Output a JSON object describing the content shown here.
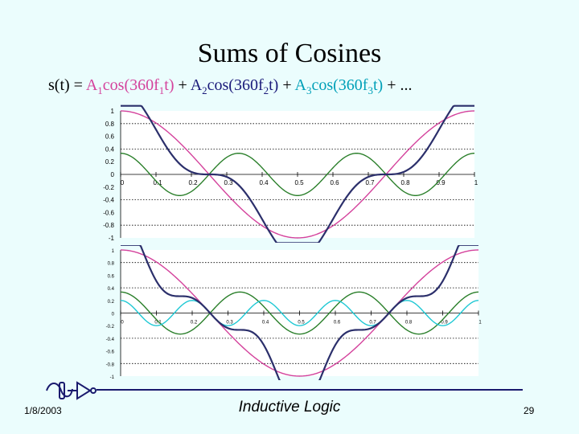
{
  "slide": {
    "title": "Sums of Cosines",
    "formula": {
      "lhs": "s(t) = ",
      "term1": {
        "A": "A",
        "a_sub": "1",
        "mid": "cos(360f",
        "f_sub": "1",
        "end": "t)"
      },
      "plus1": " + ",
      "term2": {
        "A": "A",
        "a_sub": "2",
        "mid": "cos(360f",
        "f_sub": "2",
        "end": "t)"
      },
      "plus2": " + ",
      "term3": {
        "A": "A",
        "a_sub": "3",
        "mid": "cos(360f",
        "f_sub": "3",
        "end": "t)"
      },
      "tail": " + ..."
    },
    "footer": {
      "date": "1/8/2003",
      "center": "Inductive Logic",
      "page": "29"
    },
    "colors": {
      "magenta": "#d4429c",
      "navy": "#2b2f6b",
      "green": "#2a7f2a",
      "cyan": "#1ec8d4",
      "accent_navy": "#1a1a7a",
      "accent_cyan": "#00a0b8"
    }
  },
  "chart_data": [
    {
      "type": "line",
      "x_range": [
        0,
        1
      ],
      "ylim": [
        -1,
        1
      ],
      "x_ticks": [
        "0",
        "0.1",
        "0.2",
        "0.3",
        "0.4",
        "0.5",
        "0.6",
        "0.7",
        "0.8",
        "0.9",
        "1"
      ],
      "y_ticks": [
        "1",
        "0.8",
        "0.6",
        "0.4",
        "0.2",
        "0",
        "-0.2",
        "-0.4",
        "-0.6",
        "-0.8",
        "-1"
      ],
      "dotted_gridlines_y": [
        0.8,
        0.4,
        -0.4,
        -0.8
      ],
      "series": [
        {
          "key": "f1",
          "color": "#d4429c",
          "amplitude": 1.0,
          "frequency": 1
        },
        {
          "key": "f3",
          "color": "#2a7f2a",
          "amplitude": 0.333,
          "frequency": 3
        },
        {
          "key": "sum",
          "color": "#2b2f6b",
          "components": [
            "f1",
            "f3"
          ]
        }
      ]
    },
    {
      "type": "line",
      "x_range": [
        0,
        1
      ],
      "ylim": [
        -1,
        1
      ],
      "x_ticks": [
        "0",
        "0.1",
        "0.2",
        "0.3",
        "0.4",
        "0.5",
        "0.6",
        "0.7",
        "0.8",
        "0.9",
        "1"
      ],
      "y_ticks": [
        "1",
        "0.8",
        "0.6",
        "0.4",
        "0.2",
        "0",
        "-0.2",
        "-0.4",
        "-0.6",
        "-0.8",
        "-1"
      ],
      "dotted_gridlines_y": [
        0.8,
        0.4,
        -0.4,
        -0.8
      ],
      "series": [
        {
          "key": "f1",
          "color": "#d4429c",
          "amplitude": 1.0,
          "frequency": 1
        },
        {
          "key": "f3",
          "color": "#2a7f2a",
          "amplitude": 0.333,
          "frequency": 3
        },
        {
          "key": "f5",
          "color": "#1ec8d4",
          "amplitude": 0.2,
          "frequency": 5
        },
        {
          "key": "sum",
          "color": "#2b2f6b",
          "components": [
            "f1",
            "f3",
            "f5"
          ]
        }
      ]
    }
  ]
}
